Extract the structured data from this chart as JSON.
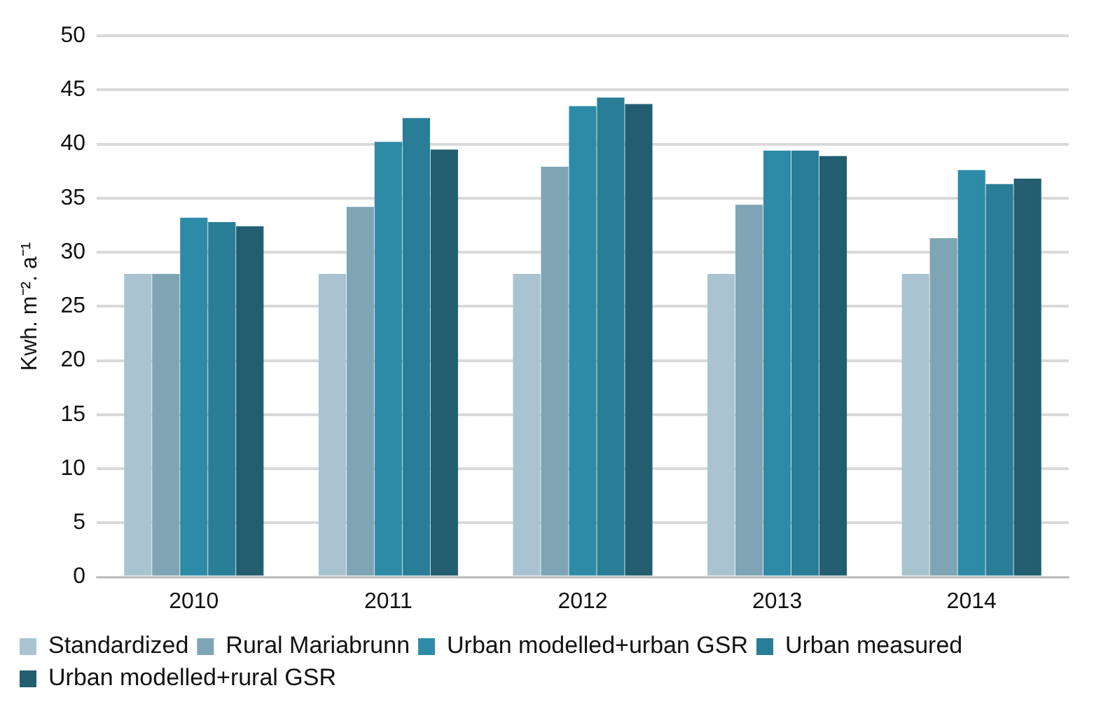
{
  "chart_data": {
    "type": "bar",
    "ylabel": "Kwh. m⁻². a⁻¹",
    "categories": [
      "2010",
      "2011",
      "2012",
      "2013",
      "2014"
    ],
    "series": [
      {
        "name": "Standardized",
        "color": "#a9c4d0",
        "values": [
          28,
          28,
          28,
          28,
          28
        ]
      },
      {
        "name": "Rural Mariabrunn",
        "color": "#7fa5b5",
        "values": [
          28,
          34.2,
          37.9,
          34.4,
          31.3
        ]
      },
      {
        "name": "Urban modelled+urban GSR",
        "color": "#2e8ba8",
        "values": [
          33.2,
          40.2,
          43.5,
          39.4,
          37.6
        ]
      },
      {
        "name": "Urban measured",
        "color": "#2a7d96",
        "values": [
          32.8,
          42.4,
          44.3,
          39.4,
          36.3
        ]
      },
      {
        "name": "Urban modelled+rural GSR",
        "color": "#225e70",
        "values": [
          32.4,
          39.5,
          43.7,
          38.9,
          36.8
        ]
      }
    ],
    "ylim": [
      0,
      50
    ],
    "yticks": [
      0,
      5,
      10,
      15,
      20,
      25,
      30,
      35,
      40,
      45,
      50
    ],
    "grid": "y",
    "legend": "bottom"
  }
}
